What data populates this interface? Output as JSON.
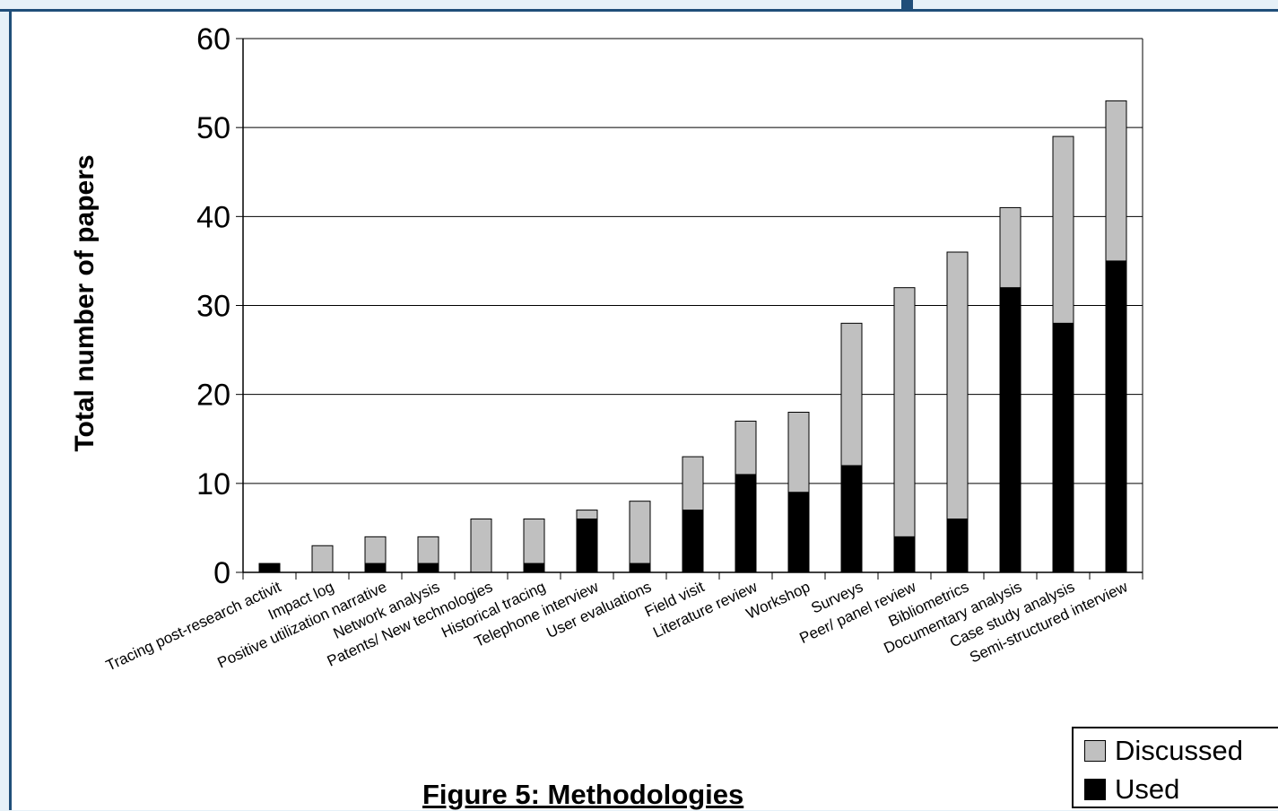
{
  "chart_data": {
    "type": "bar",
    "stacked": true,
    "caption": "Figure 5: Methodologies",
    "ylabel": "Total number of papers",
    "xlabel": "",
    "ylim": [
      0,
      60
    ],
    "yticks": [
      0,
      10,
      20,
      30,
      40,
      50,
      60
    ],
    "grid": true,
    "legend_position": "bottom-right",
    "categories": [
      "Tracing post-research activit",
      "Impact log",
      "Positive utilization narrative",
      "Network analysis",
      "Patents/ New technologies",
      "Historical tracing",
      "Telephone interview",
      "User evaluations",
      "Field visit",
      "Literature review",
      "Workshop",
      "Surveys",
      "Peer/ panel review",
      "Bibliometrics",
      "Documentary analysis",
      "Case study analysis",
      "Semi-structured interview"
    ],
    "series": [
      {
        "name": "Used",
        "color": "#000000",
        "values": [
          1,
          0,
          1,
          1,
          0,
          1,
          6,
          1,
          7,
          11,
          9,
          12,
          4,
          6,
          32,
          28,
          35
        ]
      },
      {
        "name": "Discussed",
        "color": "#c0c0c0",
        "values": [
          0,
          3,
          3,
          3,
          6,
          5,
          1,
          7,
          6,
          6,
          9,
          16,
          28,
          30,
          9,
          21,
          18
        ]
      }
    ],
    "legend": [
      "Discussed",
      "Used"
    ]
  }
}
